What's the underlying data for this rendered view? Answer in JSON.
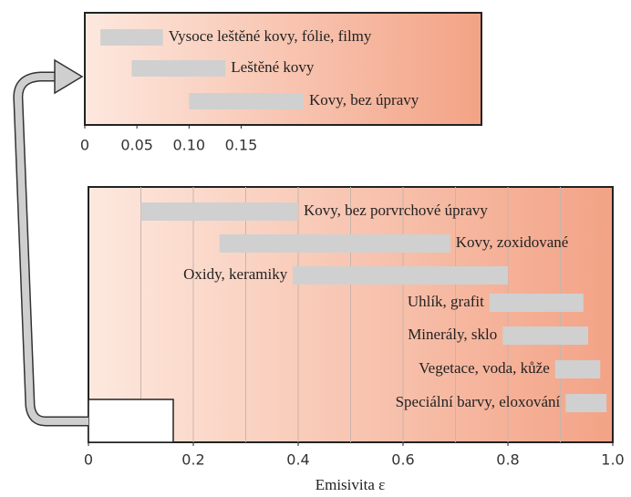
{
  "chart_data": [
    {
      "type": "range_bar",
      "categories": [
        "Vysoce leštěné kovy, fólie, filmy",
        "Leštěné kovy",
        "Kovy, bez úpravy"
      ],
      "values": [
        [
          0.015,
          0.075
        ],
        [
          0.045,
          0.135
        ],
        [
          0.1,
          0.21
        ]
      ],
      "label_positions": [
        "right",
        "right",
        "right"
      ],
      "color": "#d0d0d0",
      "xlim": [
        0,
        0.38
      ],
      "xticks": [
        0,
        0.05,
        {
          "value": 0.1,
          "label": "0.10"
        },
        0.15
      ],
      "grid": false
    },
    {
      "type": "range_bar",
      "x_label": "Emisivita ε",
      "categories": [
        "Kovy, bez porvrchové úpravy",
        "Kovy, zoxidované",
        "Oxidy, keramiky",
        "Uhlík, grafit",
        "Minerály, sklo",
        "Vegetace, voda, kůže",
        "Speciální barvy, eloxování"
      ],
      "values": [
        [
          0.1,
          0.4
        ],
        [
          0.25,
          0.69
        ],
        [
          0.39,
          0.8
        ],
        [
          0.765,
          0.944
        ],
        [
          0.79,
          0.953
        ],
        [
          0.89,
          0.976
        ],
        [
          0.91,
          0.988
        ]
      ],
      "label_positions": [
        "right",
        "right",
        "left",
        "left",
        "left",
        "left",
        "left"
      ],
      "color": "#d0d0d0",
      "xlim": [
        0,
        1
      ],
      "xticks": [
        0,
        0.2,
        0.4,
        0.6,
        0.8,
        {
          "value": 1,
          "label": "1.0"
        }
      ],
      "xgrid": [
        0.1,
        0.2,
        0.3,
        0.4,
        0.5,
        0.6,
        0.7,
        0.8,
        0.9
      ],
      "grid": true
    }
  ]
}
